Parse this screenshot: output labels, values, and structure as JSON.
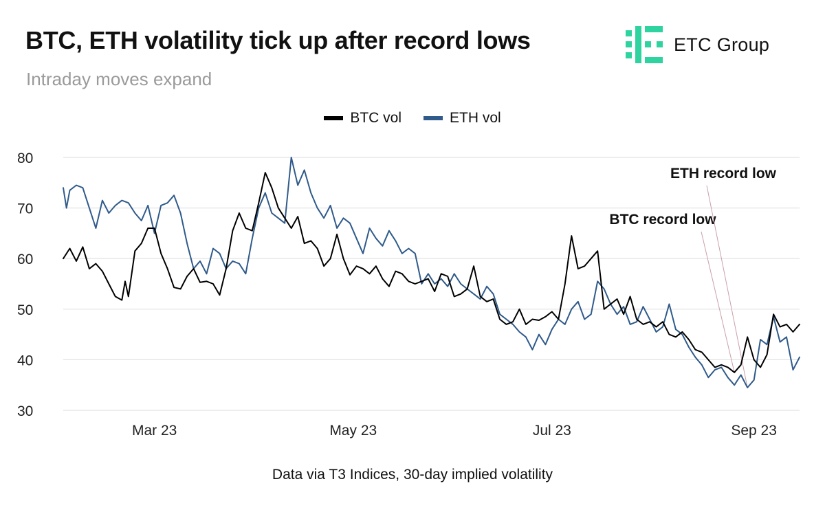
{
  "header": {
    "title": "BTC, ETH volatility tick up after record lows",
    "subtitle": "Intraday moves expand",
    "brand": "ETC Group"
  },
  "colors": {
    "brand_green": "#2fd3a0",
    "btc": "#000000",
    "eth": "#2f5a8a",
    "grid": "#e2e2e2",
    "annotation_line": "#c9a0a8"
  },
  "footer": {
    "source": "Data via T3 Indices, 30-day implied volatility"
  },
  "chart_data": {
    "type": "line",
    "title": "BTC, ETH volatility tick up after record lows",
    "xlabel": "",
    "ylabel": "",
    "ylim": [
      30,
      80
    ],
    "yticks": [
      30,
      40,
      50,
      60,
      70,
      80
    ],
    "xlim": [
      "2023-02-01",
      "2023-09-15"
    ],
    "xticks": [
      {
        "label": "Mar 23",
        "date": "2023-03-01"
      },
      {
        "label": "May 23",
        "date": "2023-05-01"
      },
      {
        "label": "Jul 23",
        "date": "2023-07-01"
      },
      {
        "label": "Sep 23",
        "date": "2023-09-01"
      }
    ],
    "grid": true,
    "legend_position": "top-center",
    "series": [
      {
        "name": "BTC vol",
        "color": "#000000",
        "points": [
          [
            "2023-02-01",
            60
          ],
          [
            "2023-02-03",
            62
          ],
          [
            "2023-02-05",
            59.5
          ],
          [
            "2023-02-07",
            62.3
          ],
          [
            "2023-02-09",
            58
          ],
          [
            "2023-02-11",
            59
          ],
          [
            "2023-02-13",
            57.5
          ],
          [
            "2023-02-15",
            55
          ],
          [
            "2023-02-17",
            52.5
          ],
          [
            "2023-02-19",
            51.8
          ],
          [
            "2023-02-20",
            55.5
          ],
          [
            "2023-02-21",
            52.5
          ],
          [
            "2023-02-23",
            61.5
          ],
          [
            "2023-02-25",
            63
          ],
          [
            "2023-02-27",
            66
          ],
          [
            "2023-03-01",
            66
          ],
          [
            "2023-03-03",
            61
          ],
          [
            "2023-03-05",
            58
          ],
          [
            "2023-03-07",
            54.3
          ],
          [
            "2023-03-09",
            54
          ],
          [
            "2023-03-11",
            56.5
          ],
          [
            "2023-03-13",
            58
          ],
          [
            "2023-03-15",
            55.3
          ],
          [
            "2023-03-17",
            55.5
          ],
          [
            "2023-03-19",
            55
          ],
          [
            "2023-03-21",
            52.8
          ],
          [
            "2023-03-23",
            58
          ],
          [
            "2023-03-25",
            65.5
          ],
          [
            "2023-03-27",
            69
          ],
          [
            "2023-03-29",
            66
          ],
          [
            "2023-03-31",
            65.5
          ],
          [
            "2023-04-02",
            71
          ],
          [
            "2023-04-04",
            77
          ],
          [
            "2023-04-06",
            74
          ],
          [
            "2023-04-08",
            70
          ],
          [
            "2023-04-10",
            68
          ],
          [
            "2023-04-12",
            66
          ],
          [
            "2023-04-14",
            68.3
          ],
          [
            "2023-04-16",
            63
          ],
          [
            "2023-04-18",
            63.5
          ],
          [
            "2023-04-20",
            62
          ],
          [
            "2023-04-22",
            58.5
          ],
          [
            "2023-04-24",
            60
          ],
          [
            "2023-04-26",
            64.8
          ],
          [
            "2023-04-28",
            60
          ],
          [
            "2023-04-30",
            56.8
          ],
          [
            "2023-05-02",
            58.5
          ],
          [
            "2023-05-04",
            58
          ],
          [
            "2023-05-06",
            57
          ],
          [
            "2023-05-08",
            58.5
          ],
          [
            "2023-05-10",
            56
          ],
          [
            "2023-05-12",
            54.5
          ],
          [
            "2023-05-14",
            57.5
          ],
          [
            "2023-05-16",
            57
          ],
          [
            "2023-05-18",
            55.5
          ],
          [
            "2023-05-20",
            55
          ],
          [
            "2023-05-22",
            55.5
          ],
          [
            "2023-05-24",
            56
          ],
          [
            "2023-05-26",
            53.5
          ],
          [
            "2023-05-28",
            57
          ],
          [
            "2023-05-30",
            56.5
          ],
          [
            "2023-06-01",
            52.5
          ],
          [
            "2023-06-03",
            53
          ],
          [
            "2023-06-05",
            54
          ],
          [
            "2023-06-07",
            58.5
          ],
          [
            "2023-06-09",
            52.5
          ],
          [
            "2023-06-11",
            51.5
          ],
          [
            "2023-06-13",
            52
          ],
          [
            "2023-06-15",
            48
          ],
          [
            "2023-06-17",
            47
          ],
          [
            "2023-06-19",
            47.5
          ],
          [
            "2023-06-21",
            50
          ],
          [
            "2023-06-23",
            47
          ],
          [
            "2023-06-25",
            48
          ],
          [
            "2023-06-27",
            47.8
          ],
          [
            "2023-06-29",
            48.5
          ],
          [
            "2023-07-01",
            49.5
          ],
          [
            "2023-07-03",
            48
          ],
          [
            "2023-07-05",
            55
          ],
          [
            "2023-07-07",
            64.5
          ],
          [
            "2023-07-09",
            58
          ],
          [
            "2023-07-11",
            58.5
          ],
          [
            "2023-07-13",
            60
          ],
          [
            "2023-07-15",
            61.5
          ],
          [
            "2023-07-17",
            50
          ],
          [
            "2023-07-19",
            51
          ],
          [
            "2023-07-21",
            52
          ],
          [
            "2023-07-23",
            49
          ],
          [
            "2023-07-25",
            52.5
          ],
          [
            "2023-07-27",
            48
          ],
          [
            "2023-07-29",
            47
          ],
          [
            "2023-07-31",
            47.5
          ],
          [
            "2023-08-02",
            46.5
          ],
          [
            "2023-08-04",
            47.5
          ],
          [
            "2023-08-06",
            45
          ],
          [
            "2023-08-08",
            44.5
          ],
          [
            "2023-08-10",
            45.5
          ],
          [
            "2023-08-12",
            44
          ],
          [
            "2023-08-14",
            42
          ],
          [
            "2023-08-16",
            41.5
          ],
          [
            "2023-08-18",
            40
          ],
          [
            "2023-08-20",
            38.5
          ],
          [
            "2023-08-22",
            39
          ],
          [
            "2023-08-24",
            38.5
          ],
          [
            "2023-08-26",
            37.5
          ],
          [
            "2023-08-28",
            39
          ],
          [
            "2023-08-30",
            44.5
          ],
          [
            "2023-09-01",
            40
          ],
          [
            "2023-09-03",
            38.5
          ],
          [
            "2023-09-05",
            41
          ],
          [
            "2023-09-07",
            49
          ],
          [
            "2023-09-09",
            46.5
          ],
          [
            "2023-09-11",
            47
          ],
          [
            "2023-09-13",
            45.5
          ],
          [
            "2023-09-15",
            47
          ]
        ]
      },
      {
        "name": "ETH vol",
        "color": "#2f5a8a",
        "points": [
          [
            "2023-02-01",
            74
          ],
          [
            "2023-02-02",
            70
          ],
          [
            "2023-02-03",
            73.5
          ],
          [
            "2023-02-05",
            74.5
          ],
          [
            "2023-02-07",
            74
          ],
          [
            "2023-02-09",
            70
          ],
          [
            "2023-02-11",
            66
          ],
          [
            "2023-02-13",
            71.5
          ],
          [
            "2023-02-15",
            69
          ],
          [
            "2023-02-17",
            70.5
          ],
          [
            "2023-02-19",
            71.5
          ],
          [
            "2023-02-21",
            71
          ],
          [
            "2023-02-23",
            69
          ],
          [
            "2023-02-25",
            67.5
          ],
          [
            "2023-02-27",
            70.5
          ],
          [
            "2023-03-01",
            65
          ],
          [
            "2023-03-03",
            70.5
          ],
          [
            "2023-03-05",
            71
          ],
          [
            "2023-03-07",
            72.5
          ],
          [
            "2023-03-09",
            69
          ],
          [
            "2023-03-11",
            63
          ],
          [
            "2023-03-13",
            58
          ],
          [
            "2023-03-15",
            59.5
          ],
          [
            "2023-03-17",
            57
          ],
          [
            "2023-03-19",
            62
          ],
          [
            "2023-03-21",
            61
          ],
          [
            "2023-03-23",
            58
          ],
          [
            "2023-03-25",
            59.5
          ],
          [
            "2023-03-27",
            59
          ],
          [
            "2023-03-29",
            57
          ],
          [
            "2023-03-31",
            64
          ],
          [
            "2023-04-02",
            70
          ],
          [
            "2023-04-04",
            73
          ],
          [
            "2023-04-06",
            69
          ],
          [
            "2023-04-08",
            68
          ],
          [
            "2023-04-10",
            67
          ],
          [
            "2023-04-12",
            80
          ],
          [
            "2023-04-14",
            74.5
          ],
          [
            "2023-04-16",
            77.5
          ],
          [
            "2023-04-18",
            73
          ],
          [
            "2023-04-20",
            70
          ],
          [
            "2023-04-22",
            68
          ],
          [
            "2023-04-24",
            70.5
          ],
          [
            "2023-04-26",
            66
          ],
          [
            "2023-04-28",
            68
          ],
          [
            "2023-04-30",
            67
          ],
          [
            "2023-05-02",
            64
          ],
          [
            "2023-05-04",
            61
          ],
          [
            "2023-05-06",
            66
          ],
          [
            "2023-05-08",
            64
          ],
          [
            "2023-05-10",
            62.5
          ],
          [
            "2023-05-12",
            65.5
          ],
          [
            "2023-05-14",
            63.5
          ],
          [
            "2023-05-16",
            61
          ],
          [
            "2023-05-18",
            62
          ],
          [
            "2023-05-20",
            61
          ],
          [
            "2023-05-22",
            55
          ],
          [
            "2023-05-24",
            57
          ],
          [
            "2023-05-26",
            55
          ],
          [
            "2023-05-28",
            56
          ],
          [
            "2023-05-30",
            54.5
          ],
          [
            "2023-06-01",
            57
          ],
          [
            "2023-06-03",
            55
          ],
          [
            "2023-06-05",
            54
          ],
          [
            "2023-06-07",
            53
          ],
          [
            "2023-06-09",
            52
          ],
          [
            "2023-06-11",
            54.5
          ],
          [
            "2023-06-13",
            53
          ],
          [
            "2023-06-15",
            49
          ],
          [
            "2023-06-17",
            48
          ],
          [
            "2023-06-19",
            47
          ],
          [
            "2023-06-21",
            45.5
          ],
          [
            "2023-06-23",
            44.5
          ],
          [
            "2023-06-25",
            42
          ],
          [
            "2023-06-27",
            45
          ],
          [
            "2023-06-29",
            43
          ],
          [
            "2023-07-01",
            46
          ],
          [
            "2023-07-03",
            48
          ],
          [
            "2023-07-05",
            47
          ],
          [
            "2023-07-07",
            50
          ],
          [
            "2023-07-09",
            51.5
          ],
          [
            "2023-07-11",
            48
          ],
          [
            "2023-07-13",
            49
          ],
          [
            "2023-07-15",
            55.5
          ],
          [
            "2023-07-17",
            54
          ],
          [
            "2023-07-19",
            51
          ],
          [
            "2023-07-21",
            49
          ],
          [
            "2023-07-23",
            50.5
          ],
          [
            "2023-07-25",
            47
          ],
          [
            "2023-07-27",
            47.5
          ],
          [
            "2023-07-29",
            50.5
          ],
          [
            "2023-07-31",
            48
          ],
          [
            "2023-08-02",
            45.5
          ],
          [
            "2023-08-04",
            46.5
          ],
          [
            "2023-08-06",
            51
          ],
          [
            "2023-08-08",
            46
          ],
          [
            "2023-08-10",
            45
          ],
          [
            "2023-08-12",
            42.5
          ],
          [
            "2023-08-14",
            40.5
          ],
          [
            "2023-08-16",
            39
          ],
          [
            "2023-08-18",
            36.5
          ],
          [
            "2023-08-20",
            38
          ],
          [
            "2023-08-22",
            38.5
          ],
          [
            "2023-08-24",
            36.5
          ],
          [
            "2023-08-26",
            35
          ],
          [
            "2023-08-28",
            37
          ],
          [
            "2023-08-30",
            34.5
          ],
          [
            "2023-09-01",
            36
          ],
          [
            "2023-09-03",
            44
          ],
          [
            "2023-09-05",
            43
          ],
          [
            "2023-09-07",
            48.5
          ],
          [
            "2023-09-09",
            43.5
          ],
          [
            "2023-09-11",
            44.5
          ],
          [
            "2023-09-13",
            38
          ],
          [
            "2023-09-15",
            40.5
          ]
        ]
      }
    ],
    "annotations": [
      {
        "text": "BTC record low",
        "date": "2023-08-26",
        "value": 37.5
      },
      {
        "text": "ETH record low",
        "date": "2023-08-30",
        "value": 34.5
      }
    ]
  }
}
